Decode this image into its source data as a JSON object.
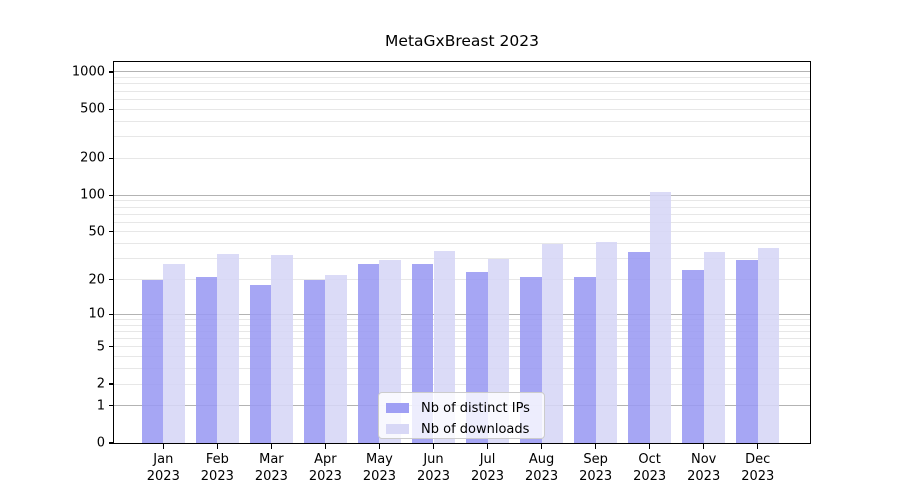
{
  "title": "MetaGxBreast 2023",
  "legend": {
    "items": [
      {
        "label": "Nb of distinct IPs",
        "color": "#9a9af3"
      },
      {
        "label": "Nb of downloads",
        "color": "#d6d6f6"
      }
    ]
  },
  "chart_data": {
    "type": "bar",
    "title": "MetaGxBreast 2023",
    "categories": [
      "Jan 2023",
      "Feb 2023",
      "Mar 2023",
      "Apr 2023",
      "May 2023",
      "Jun 2023",
      "Jul 2023",
      "Aug 2023",
      "Sep 2023",
      "Oct 2023",
      "Nov 2023",
      "Dec 2023"
    ],
    "series": [
      {
        "name": "Nb of distinct IPs",
        "color": "#9a9af3",
        "values": [
          20,
          21,
          18,
          20,
          27,
          27,
          23,
          21,
          21,
          34,
          24,
          29
        ]
      },
      {
        "name": "Nb of downloads",
        "color": "#d6d6f6",
        "values": [
          27,
          33,
          32,
          22,
          29,
          35,
          30,
          40,
          41,
          107,
          34,
          37
        ]
      }
    ],
    "yscale": "log1p",
    "yticks": [
      0,
      1,
      2,
      5,
      10,
      20,
      50,
      100,
      200,
      500,
      1000
    ],
    "ylim": [
      0,
      1216
    ],
    "xlabel": "",
    "ylabel": "",
    "grid": "on",
    "grid_major_color": "#b3b3b3",
    "grid_minor_color": "#e7e7e7",
    "legend_position": "lower center"
  }
}
